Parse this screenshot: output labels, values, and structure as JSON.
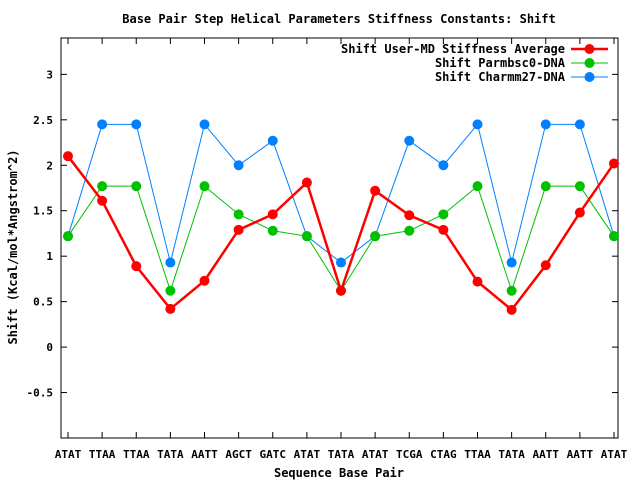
{
  "chart_data": {
    "type": "line",
    "title": "Base Pair Step Helical Parameters Stiffness Constants: Shift",
    "xlabel": "Sequence Base Pair",
    "ylabel": "Shift (Kcal/mol*Angstrom^2)",
    "categories": [
      "ATAT",
      "TTAA",
      "TTAA",
      "TATA",
      "AATT",
      "AGCT",
      "GATC",
      "ATAT",
      "TATA",
      "ATAT",
      "TCGA",
      "CTAG",
      "TTAA",
      "TATA",
      "AATT",
      "AATT",
      "ATAT"
    ],
    "ylim": [
      -1,
      3.4
    ],
    "yticks": [
      -0.5,
      0,
      0.5,
      1,
      1.5,
      2,
      2.5,
      3
    ],
    "ytick_labels": [
      "-0.5",
      "0",
      "0.5",
      "1",
      "1.5",
      "2",
      "2.5",
      "3"
    ],
    "grid": false,
    "legend_position": "top-right",
    "series": [
      {
        "name": "Shift User-MD Stiffness Average",
        "color": "#ff0000",
        "values": [
          2.1,
          1.61,
          0.89,
          0.42,
          0.73,
          1.29,
          1.46,
          1.81,
          0.62,
          1.72,
          1.45,
          1.29,
          0.72,
          0.41,
          0.9,
          1.48,
          2.02
        ]
      },
      {
        "name": "Shift Parmbsc0-DNA",
        "color": "#00c000",
        "values": [
          1.22,
          1.77,
          1.77,
          0.62,
          1.77,
          1.46,
          1.28,
          1.22,
          0.62,
          1.22,
          1.28,
          1.46,
          1.77,
          0.62,
          1.77,
          1.77,
          1.22
        ]
      },
      {
        "name": "Shift Charmm27-DNA",
        "color": "#0080ff",
        "values": [
          1.22,
          2.45,
          2.45,
          0.93,
          2.45,
          2.0,
          2.27,
          1.22,
          0.93,
          1.22,
          2.27,
          2.0,
          2.45,
          0.93,
          2.45,
          2.45,
          1.22
        ]
      }
    ]
  }
}
